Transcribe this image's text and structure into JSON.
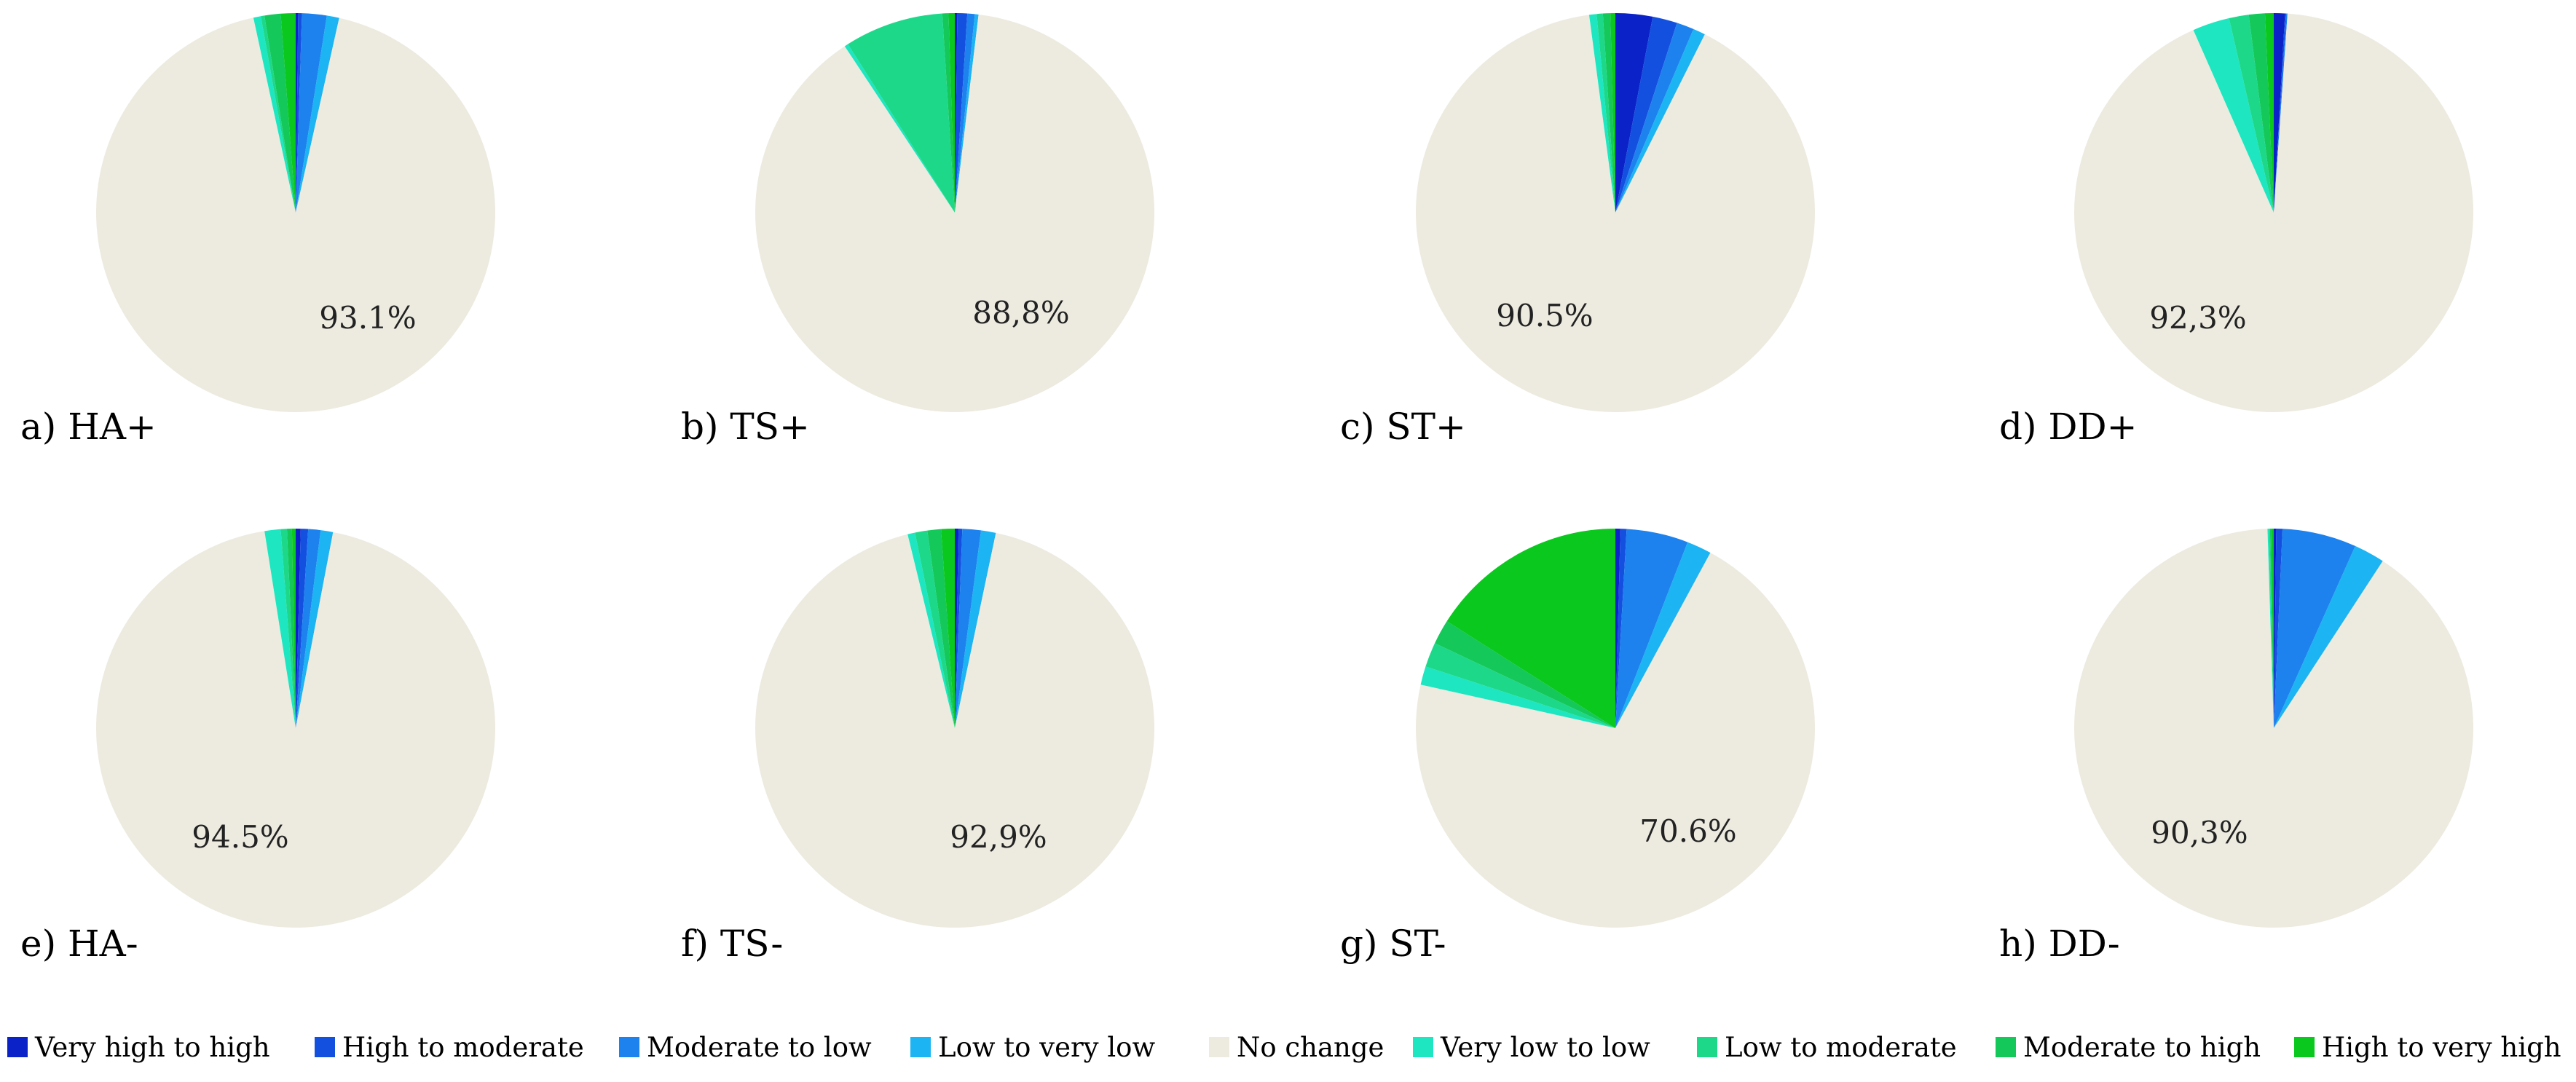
{
  "chart_data": {
    "type": "pie",
    "categories": [
      "Very high to high",
      "High to moderate",
      "Moderate to low",
      "Low to very low",
      "No change",
      "Very low to low",
      "Low to moderate",
      "Moderate to high",
      "High to very high"
    ],
    "colors": [
      "#0a22c8",
      "#1450e0",
      "#1e82ee",
      "#1cb4f2",
      "#edebe0",
      "#1ee6c0",
      "#1ed88a",
      "#14c85a",
      "#0ac81e"
    ],
    "legend_position": "bottom",
    "charts": [
      {
        "panel": "a) HA+",
        "percent_label": "93.1%",
        "values": [
          0.2,
          0.3,
          2.0,
          1.0,
          93.1,
          0.6,
          0.3,
          1.3,
          1.2
        ]
      },
      {
        "panel": "b) TS+",
        "percent_label": "88,8%",
        "values": [
          0.2,
          0.8,
          0.6,
          0.3,
          88.8,
          0.3,
          8.0,
          0.5,
          0.5
        ]
      },
      {
        "panel": "c) ST+",
        "percent_label": "90.5%",
        "values": [
          3.0,
          2.0,
          1.4,
          1.0,
          90.5,
          0.6,
          0.5,
          0.6,
          0.4
        ]
      },
      {
        "panel": "d) DD+",
        "percent_label": "92,3%",
        "values": [
          0.9,
          0.1,
          0.1,
          0.0,
          92.3,
          3.0,
          1.6,
          1.3,
          0.7
        ]
      },
      {
        "panel": "e) HA-",
        "percent_label": "94.5%",
        "values": [
          0.4,
          0.6,
          1.0,
          1.0,
          94.5,
          1.3,
          0.5,
          0.4,
          0.3
        ]
      },
      {
        "panel": "f) TS-",
        "percent_label": "92,9%",
        "values": [
          0.3,
          0.3,
          1.5,
          1.2,
          92.9,
          0.6,
          1.0,
          1.1,
          1.1
        ]
      },
      {
        "panel": "g) ST-",
        "percent_label": "70.6%",
        "values": [
          0.4,
          0.5,
          5.0,
          2.0,
          70.6,
          1.5,
          2.0,
          2.0,
          16.0
        ]
      },
      {
        "panel": "h) DD-",
        "percent_label": "90,3%",
        "values": [
          0.2,
          0.5,
          6.0,
          2.5,
          90.3,
          0.1,
          0.1,
          0.1,
          0.2
        ]
      }
    ]
  }
}
